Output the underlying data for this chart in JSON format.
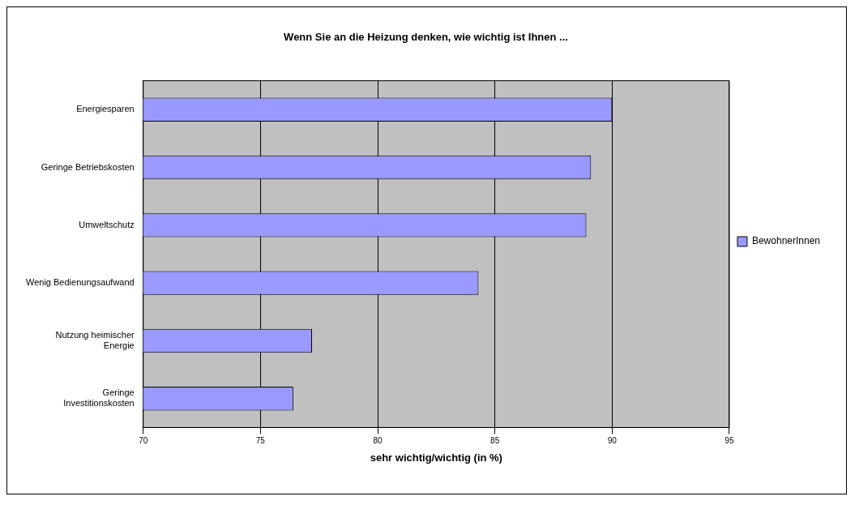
{
  "chart_data": {
    "type": "bar",
    "orientation": "horizontal",
    "title": "Wenn Sie an die Heizung denken, wie wichtig ist Ihnen ...",
    "xlabel": "sehr wichtig/wichtig (in %)",
    "categories": [
      "Energiesparen",
      "Geringe Betriebskosten",
      "Umweltschutz",
      "Wenig Bedienungsaufwand",
      "Nutzung heimischer Energie",
      "Geringe Investitionskosten"
    ],
    "series": [
      {
        "name": "BewohnerInnen",
        "color": "#9999ff",
        "values": [
          90,
          89.1,
          88.9,
          84.3,
          77.2,
          76.4
        ]
      }
    ],
    "xlim": [
      70,
      95
    ],
    "xticks": [
      70,
      75,
      80,
      85,
      90,
      95
    ],
    "grid": "x",
    "legend": "right"
  }
}
